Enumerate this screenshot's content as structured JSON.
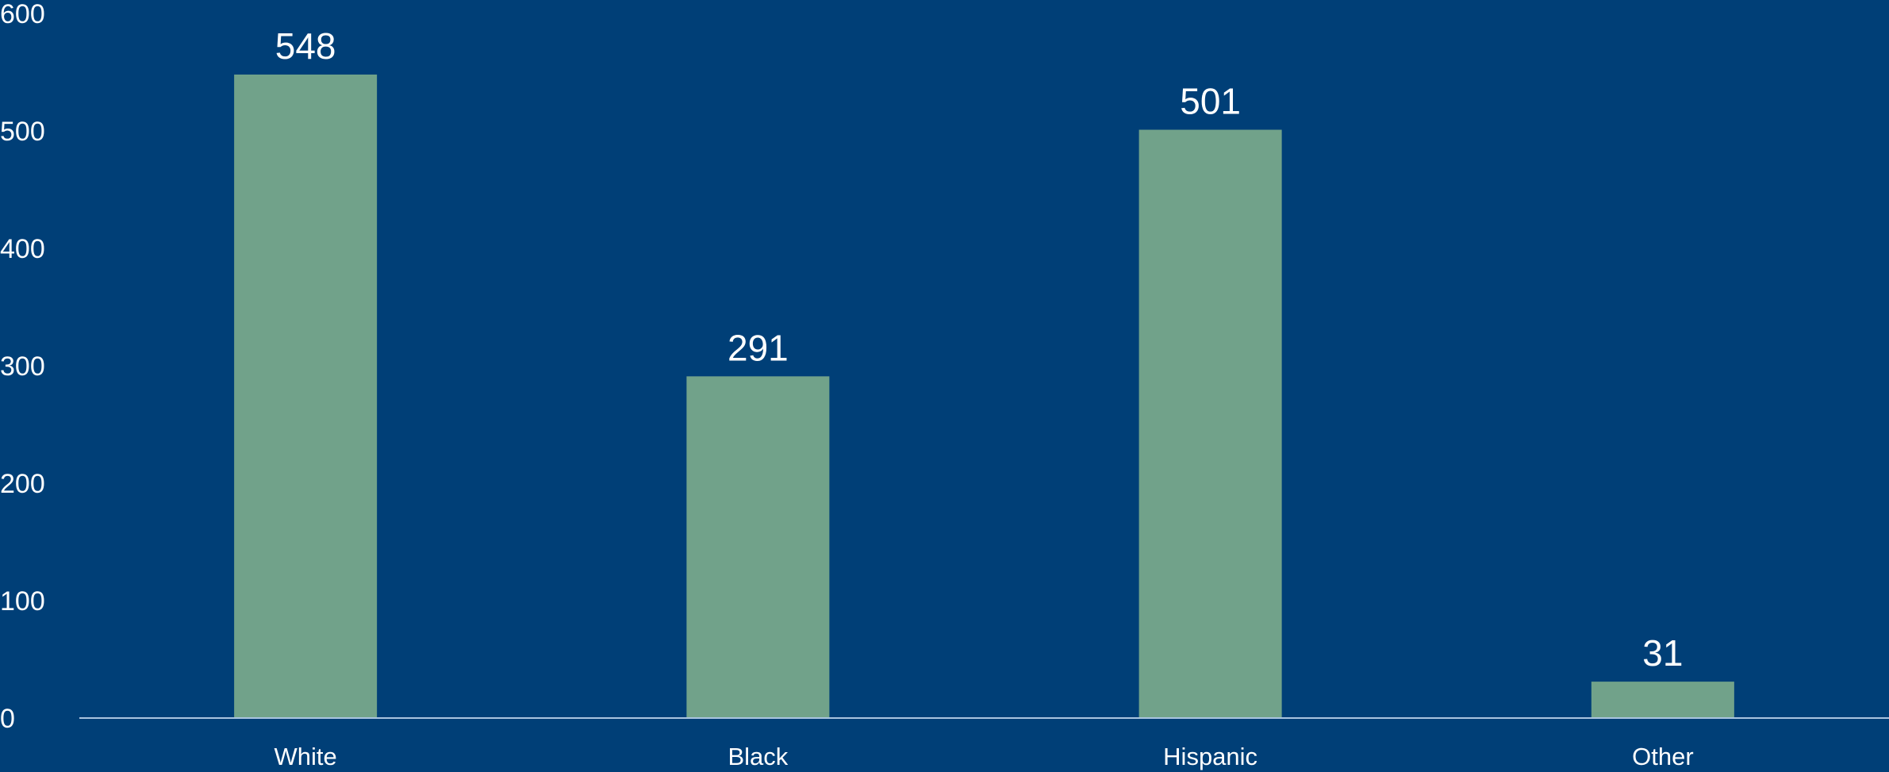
{
  "chart_data": {
    "type": "bar",
    "categories": [
      "White",
      "Black",
      "Hispanic",
      "Other"
    ],
    "values": [
      548,
      291,
      501,
      31
    ],
    "data_labels": [
      "548",
      "291",
      "501",
      "31"
    ],
    "title": "",
    "xlabel": "",
    "ylabel": "",
    "ylim": [
      0,
      600
    ],
    "yticks": [
      0,
      100,
      200,
      300,
      400,
      500,
      600
    ],
    "ytick_labels": [
      "0",
      "100",
      "200",
      "300",
      "400",
      "500",
      "600"
    ],
    "grid": false,
    "legend": "none"
  },
  "colors": {
    "background": "#003f77",
    "bar": "#71a28a",
    "axis_line": "#a9c4df",
    "text": "#ffffff"
  }
}
